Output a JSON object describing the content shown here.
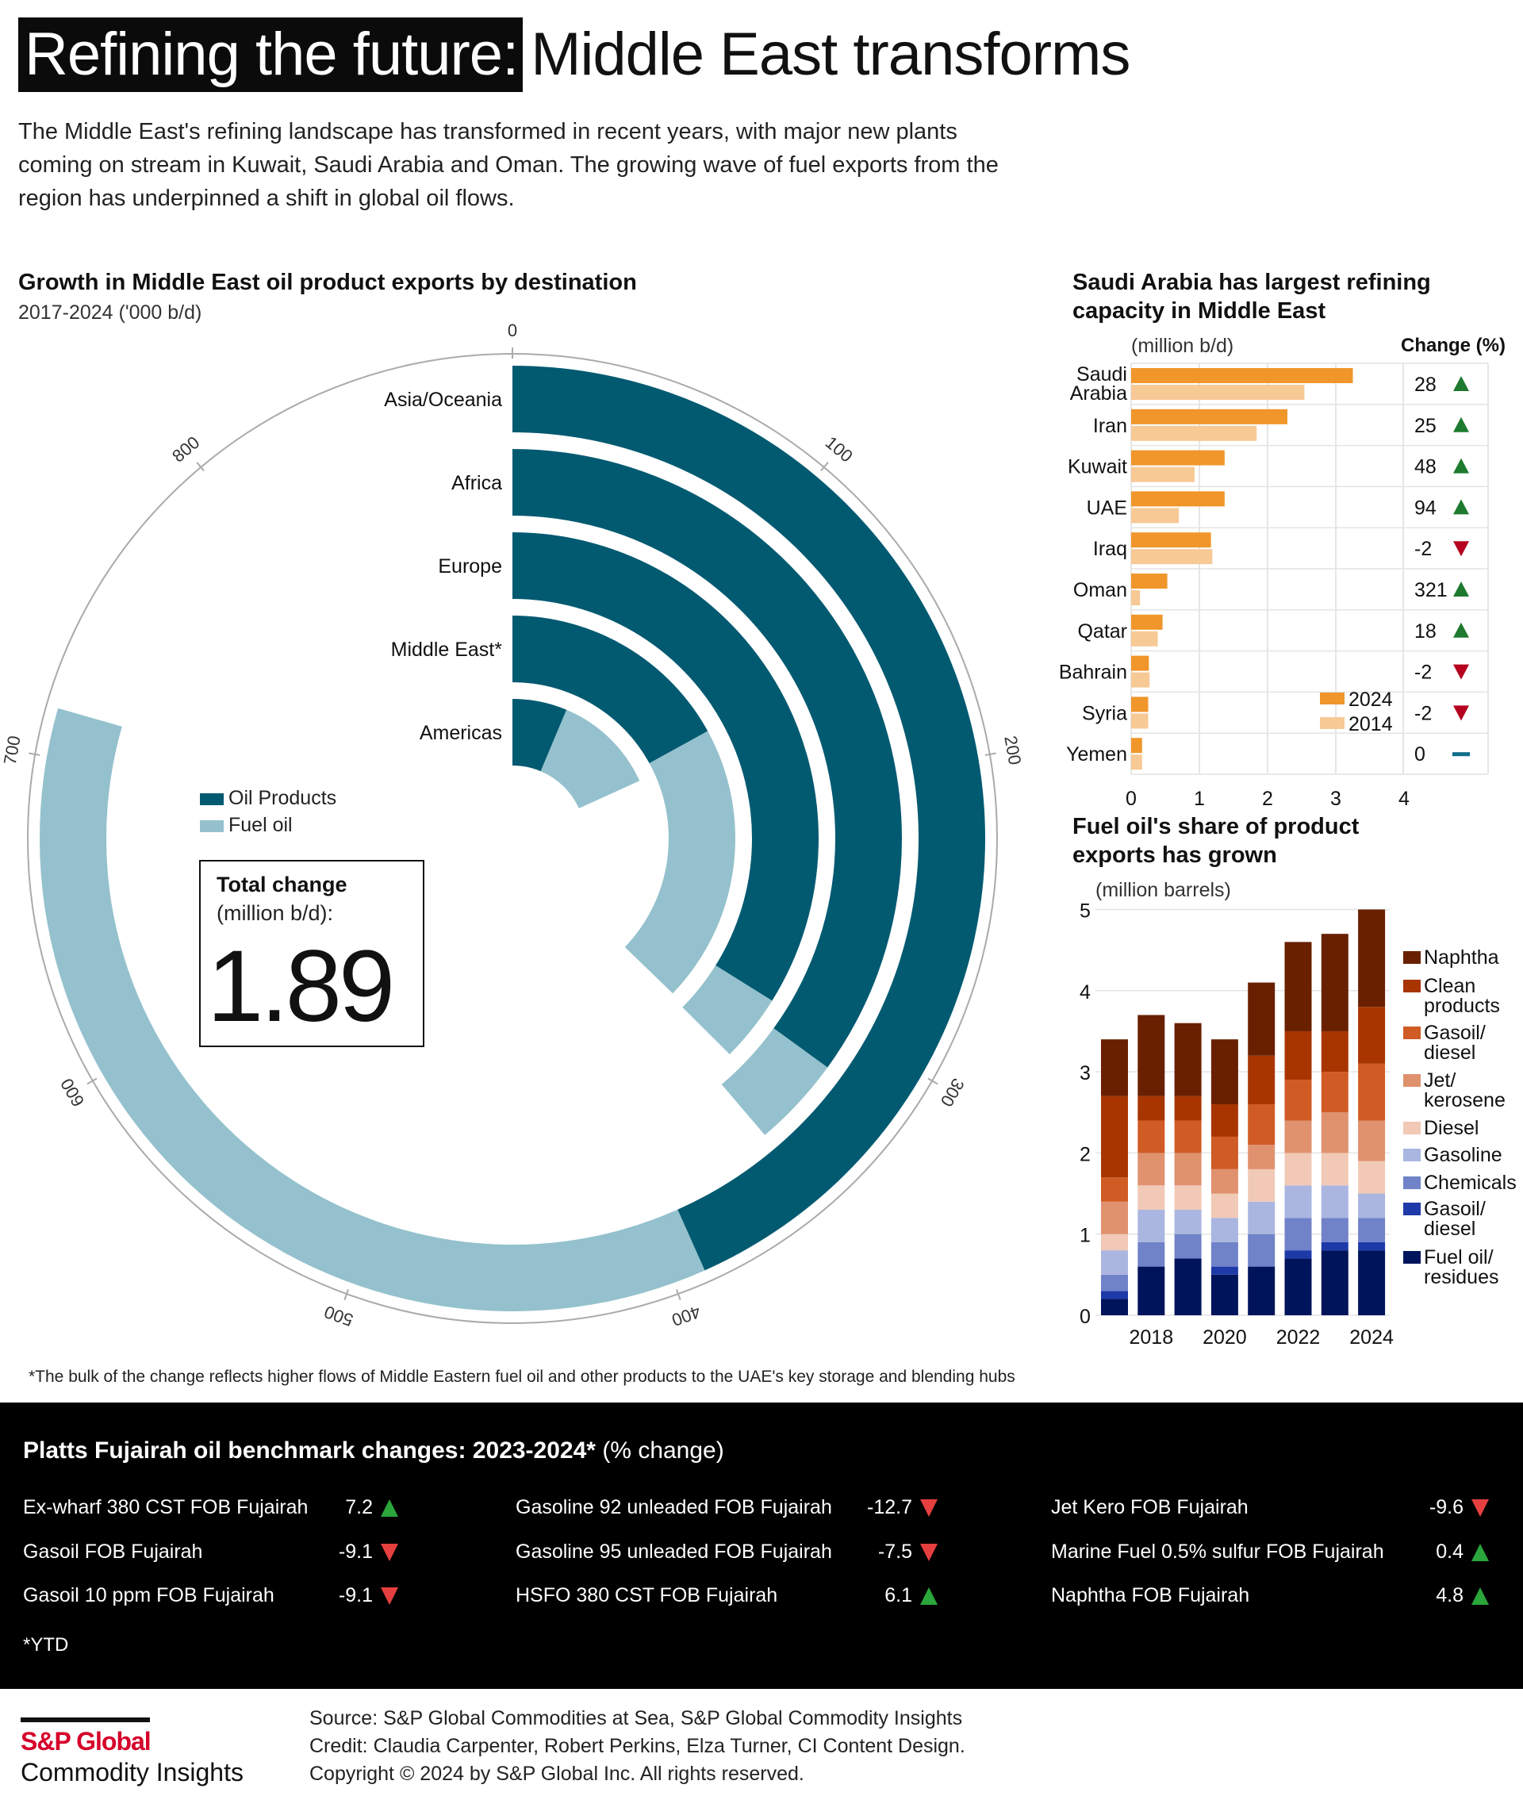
{
  "header": {
    "title_highlight": "Refining the future:",
    "title_rest": "Middle East transforms",
    "intro_lines": [
      "The Middle East's refining landscape has transformed in recent years, with major new plants",
      "coming on stream in Kuwait, Saudi Arabia and Oman. The growing wave of fuel exports from the",
      "region has underpinned a shift in global oil flows."
    ]
  },
  "colors": {
    "oil_products": "#025a71",
    "fuel_oil": "#94c1cd",
    "bar_2024": "#f0962a",
    "bar_2014": "#f7c995",
    "up_green": "#1e7a2e",
    "down_red": "#b5001f",
    "zero_blue": "#0f6e8c"
  },
  "chart_data": [
    {
      "type": "radial-bar",
      "title": "Growth in Middle East oil product exports by destination",
      "subtitle": "2017-2024 ('000 b/d)",
      "axis_ticks": [
        "0",
        "100",
        "200",
        "300",
        "400",
        "500",
        "600",
        "700",
        "800"
      ],
      "axis_max": 900,
      "legend": [
        "Oil Products",
        "Fuel oil"
      ],
      "categories": [
        "Asia/Oceania",
        "Africa",
        "Europe",
        "Middle East*",
        "Americas"
      ],
      "series": [
        {
          "name": "Oil Products",
          "values": [
            390,
            315,
            305,
            153,
            57
          ]
        },
        {
          "name": "Fuel oil",
          "values": [
            325,
            34,
            32,
            182,
            107
          ]
        }
      ],
      "total_box": {
        "title": "Total change",
        "unit": "(million b/d):",
        "value": "1.89"
      }
    },
    {
      "type": "bar",
      "orientation": "horizontal",
      "title_lines": [
        "Saudi Arabia has largest refining",
        "capacity in Middle East"
      ],
      "unit": "(million b/d)",
      "change_header": "Change (%)",
      "categories": [
        "Saudi Arabia",
        "Iran",
        "Kuwait",
        "UAE",
        "Iraq",
        "Oman",
        "Qatar",
        "Bahrain",
        "Syria",
        "Yemen"
      ],
      "category_lines": [
        [
          "Saudi",
          "Arabia"
        ],
        [
          "Iran"
        ],
        [
          "Kuwait"
        ],
        [
          "UAE"
        ],
        [
          "Iraq"
        ],
        [
          "Oman"
        ],
        [
          "Qatar"
        ],
        [
          "Bahrain"
        ],
        [
          "Syria"
        ],
        [
          "Yemen"
        ]
      ],
      "series": [
        {
          "name": "2024",
          "values": [
            3.25,
            2.29,
            1.37,
            1.37,
            1.17,
            0.53,
            0.46,
            0.26,
            0.25,
            0.16
          ]
        },
        {
          "name": "2014",
          "values": [
            2.54,
            1.84,
            0.93,
            0.7,
            1.19,
            0.13,
            0.39,
            0.27,
            0.25,
            0.16
          ]
        }
      ],
      "change_pct": [
        "28",
        "25",
        "48",
        "94",
        "-2",
        "321",
        "18",
        "-2",
        "-2",
        "0"
      ],
      "change_dir": [
        "up",
        "up",
        "up",
        "up",
        "down",
        "up",
        "up",
        "down",
        "down",
        "flat"
      ],
      "xticks": [
        "0",
        "1",
        "2",
        "3",
        "4"
      ],
      "xlim": [
        0,
        4
      ],
      "legend_placement": "bottom-right"
    },
    {
      "type": "bar",
      "stacked": true,
      "title_lines": [
        "Fuel oil's share of product",
        "exports has grown"
      ],
      "unit": "(million barrels)",
      "x": [
        2017,
        2018,
        2019,
        2020,
        2021,
        2022,
        2023,
        2024
      ],
      "xtick_labels": [
        "2018",
        "2020",
        "2022",
        "2024"
      ],
      "yticks": [
        "0",
        "1",
        "2",
        "3",
        "4",
        "5"
      ],
      "ylim": [
        0,
        5
      ],
      "grid": true,
      "legend_placement": "right",
      "series": [
        {
          "name": "Fuel oil/ residues",
          "label_lines": [
            "Fuel oil/",
            "residues"
          ],
          "color": "#00145c",
          "values": [
            0.2,
            0.6,
            0.7,
            0.5,
            0.6,
            0.7,
            0.8,
            0.8
          ]
        },
        {
          "name": "Gasoil/ diesel",
          "label_lines": [
            "Gasoil/",
            "diesel"
          ],
          "color": "#1e3aa8",
          "values": [
            0.1,
            0,
            0,
            0.1,
            0,
            0.1,
            0.1,
            0.1
          ]
        },
        {
          "name": "Chemicals",
          "label_lines": [
            "Chemicals"
          ],
          "color": "#7082c8",
          "values": [
            0.2,
            0.3,
            0.3,
            0.3,
            0.4,
            0.4,
            0.3,
            0.3
          ]
        },
        {
          "name": "Gasoline",
          "label_lines": [
            "Gasoline"
          ],
          "color": "#aab5e0",
          "values": [
            0.3,
            0.4,
            0.3,
            0.3,
            0.4,
            0.4,
            0.4,
            0.3
          ]
        },
        {
          "name": "Diesel",
          "label_lines": [
            "Diesel"
          ],
          "color": "#f1c9b6",
          "values": [
            0.2,
            0.3,
            0.3,
            0.3,
            0.4,
            0.4,
            0.4,
            0.4
          ]
        },
        {
          "name": "Jet/ kerosene",
          "label_lines": [
            "Jet/",
            "kerosene"
          ],
          "color": "#e0916e",
          "values": [
            0.4,
            0.4,
            0.4,
            0.3,
            0.3,
            0.4,
            0.5,
            0.5
          ]
        },
        {
          "name": "Gasoil/ diesel",
          "label_lines": [
            "Gasoil/",
            "diesel"
          ],
          "color": "#d05b25",
          "values": [
            0.3,
            0.4,
            0.4,
            0.4,
            0.5,
            0.5,
            0.5,
            0.7
          ]
        },
        {
          "name": "Clean products",
          "label_lines": [
            "Clean",
            "products"
          ],
          "color": "#a83500",
          "values": [
            1.0,
            0.3,
            0.3,
            0.4,
            0.6,
            0.6,
            0.5,
            0.7
          ]
        },
        {
          "name": "Naphtha",
          "label_lines": [
            "Naphtha"
          ],
          "color": "#692000",
          "values": [
            0.7,
            1.0,
            0.9,
            0.8,
            0.9,
            1.1,
            1.2,
            1.2
          ]
        }
      ]
    }
  ],
  "footnote": "*The bulk of the change reflects higher flows of Middle Eastern fuel oil and other products to the UAE's key storage and blending hubs",
  "benchmarks": {
    "title_bold": "Platts Fujairah oil benchmark changes: 2023-2024*",
    "title_unit": "(% change)",
    "items": [
      {
        "name": "Ex-wharf 380 CST FOB Fujairah",
        "value": "7.2",
        "dir": "up"
      },
      {
        "name": "Gasoil FOB Fujairah",
        "value": "-9.1",
        "dir": "down"
      },
      {
        "name": "Gasoil 10 ppm FOB Fujairah",
        "value": "-9.1",
        "dir": "down"
      },
      {
        "name": "Gasoline 92 unleaded FOB Fujairah",
        "value": "-12.7",
        "dir": "down"
      },
      {
        "name": "Gasoline 95 unleaded FOB Fujairah",
        "value": "-7.5",
        "dir": "down"
      },
      {
        "name": "HSFO 380 CST FOB Fujairah",
        "value": "6.1",
        "dir": "up"
      },
      {
        "name": "Jet Kero FOB Fujairah",
        "value": "-9.6",
        "dir": "down"
      },
      {
        "name": "Marine Fuel 0.5% sulfur FOB Fujairah",
        "value": "0.4",
        "dir": "up"
      },
      {
        "name": "Naphtha FOB Fujairah",
        "value": "4.8",
        "dir": "up"
      }
    ],
    "note": "*YTD"
  },
  "footer": {
    "logo_line1": "S&P Global",
    "logo_line2": "Commodity Insights",
    "source": "Source: S&P Global Commodities at Sea, S&P Global Commodity Insights",
    "credit": "Credit: Claudia Carpenter, Robert Perkins, Elza Turner, CI Content Design.",
    "copyright": "Copyright © 2024 by S&P Global Inc.  All rights reserved."
  }
}
